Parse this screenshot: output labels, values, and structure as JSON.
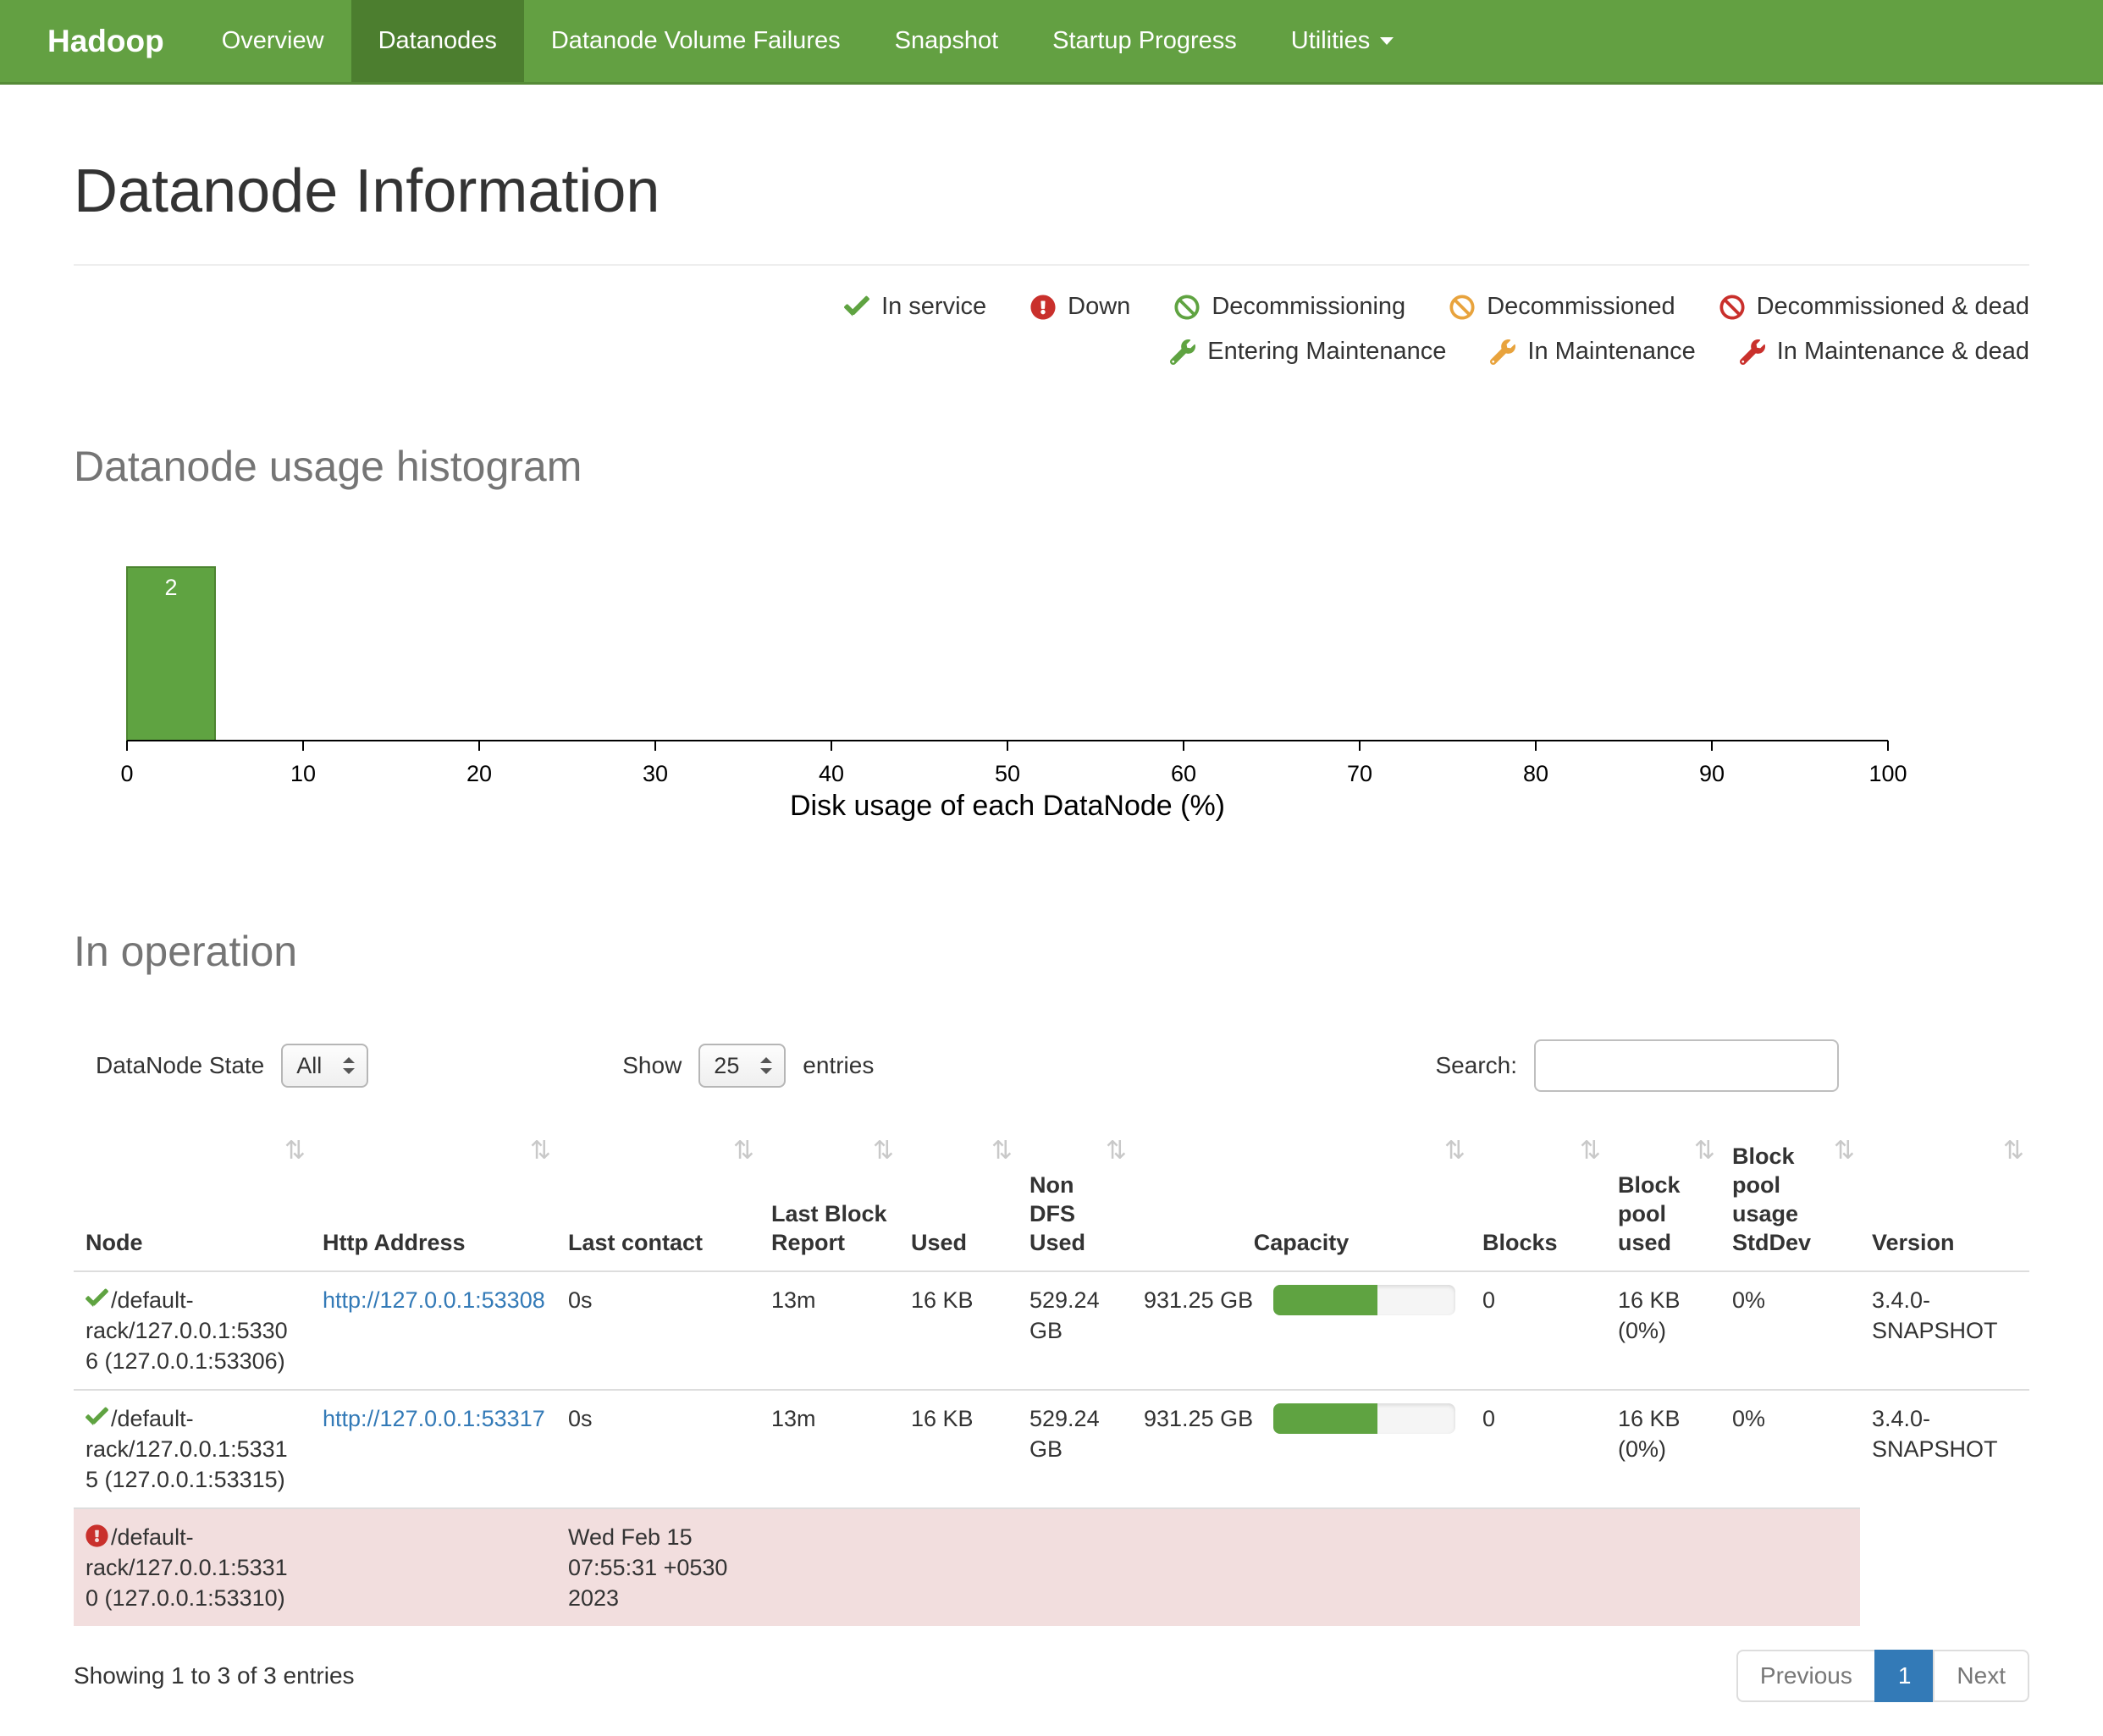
{
  "theme": {
    "navbar_bg": "#63a042",
    "navbar_active_bg": "#4c7e2f",
    "link_color": "#337ab7",
    "danger_row_bg": "#f2dede",
    "pagination_active_bg": "#337ab7"
  },
  "navbar": {
    "brand": "Hadoop",
    "items": [
      {
        "label": "Overview",
        "active": false
      },
      {
        "label": "Datanodes",
        "active": true
      },
      {
        "label": "Datanode Volume Failures",
        "active": false
      },
      {
        "label": "Snapshot",
        "active": false
      },
      {
        "label": "Startup Progress",
        "active": false
      },
      {
        "label": "Utilities",
        "active": false,
        "has_dropdown": true
      }
    ]
  },
  "page": {
    "title": "Datanode Information"
  },
  "legend": {
    "row1": [
      {
        "icon": "check-icon",
        "color": "#5fa341",
        "label": "In service"
      },
      {
        "icon": "exclamation-circle-icon",
        "color": "#c9302c",
        "label": "Down"
      },
      {
        "icon": "ban-icon",
        "color": "#5fa341",
        "label": "Decommissioning"
      },
      {
        "icon": "ban-icon",
        "color": "#e8a33d",
        "label": "Decommissioned"
      },
      {
        "icon": "ban-icon",
        "color": "#c9302c",
        "label": "Decommissioned & dead"
      }
    ],
    "row2": [
      {
        "icon": "wrench-icon",
        "color": "#5fa341",
        "label": "Entering Maintenance"
      },
      {
        "icon": "wrench-icon",
        "color": "#e8a33d",
        "label": "In Maintenance"
      },
      {
        "icon": "wrench-icon",
        "color": "#c9302c",
        "label": "In Maintenance & dead"
      }
    ]
  },
  "sections": {
    "histogram_heading": "Datanode usage histogram",
    "operation_heading": "In operation"
  },
  "chart_data": {
    "type": "bar",
    "title": "Datanode usage histogram",
    "xlabel": "Disk usage of each DataNode (%)",
    "ylabel": "",
    "xlim": [
      0,
      100
    ],
    "x_ticks": [
      0,
      10,
      20,
      30,
      40,
      50,
      60,
      70,
      80,
      90,
      100
    ],
    "bins": [
      {
        "range": [
          0,
          5
        ],
        "count": 2
      }
    ],
    "bar_color": "#5fa341",
    "bar_border_color": "#4c8430",
    "grid": false,
    "legend_position": "none"
  },
  "in_operation": {
    "controls": {
      "state_label": "DataNode State",
      "state_value": "All",
      "show_label": "Show",
      "show_value": "25",
      "entries_label": "entries",
      "search_label": "Search:",
      "search_value": ""
    },
    "table": {
      "columns": [
        "Node",
        "Http Address",
        "Last contact",
        "Last Block Report",
        "Used",
        "Non DFS Used",
        "Capacity",
        "Blocks",
        "Block pool used",
        "Block pool usage StdDev",
        "Version"
      ],
      "rows": [
        {
          "status": "in-service",
          "node": "/default-rack/127.0.0.1:53306 (127.0.0.1:53306)",
          "http_address": "http://127.0.0.1:53308",
          "last_contact": "0s",
          "last_block_report": "13m",
          "used": "16 KB",
          "non_dfs_used": "529.24 GB",
          "capacity": "931.25 GB",
          "capacity_used_pct": 57,
          "blocks": "0",
          "block_pool_used": "16 KB (0%)",
          "block_pool_usage_stddev": "0%",
          "version": "3.4.0-SNAPSHOT"
        },
        {
          "status": "in-service",
          "node": "/default-rack/127.0.0.1:53315 (127.0.0.1:53315)",
          "http_address": "http://127.0.0.1:53317",
          "last_contact": "0s",
          "last_block_report": "13m",
          "used": "16 KB",
          "non_dfs_used": "529.24 GB",
          "capacity": "931.25 GB",
          "capacity_used_pct": 57,
          "blocks": "0",
          "block_pool_used": "16 KB (0%)",
          "block_pool_usage_stddev": "0%",
          "version": "3.4.0-SNAPSHOT"
        },
        {
          "status": "down",
          "node": "/default-rack/127.0.0.1:53310 (127.0.0.1:53310)",
          "last_contact": "Wed Feb 15 07:55:31 +0530 2023"
        }
      ]
    },
    "footer": {
      "summary": "Showing 1 to 3 of 3 entries",
      "previous_label": "Previous",
      "current_page": "1",
      "next_label": "Next"
    }
  }
}
